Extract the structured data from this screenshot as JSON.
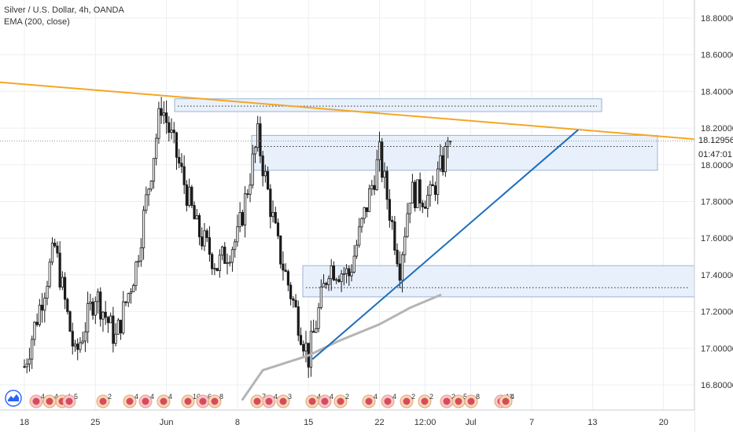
{
  "legend": {
    "title": "Silver / U.S. Dollar, 4h, OANDA",
    "indicator": "EMA (200, close)"
  },
  "current_price": "18.12956",
  "countdown": "01:47:01",
  "colors": {
    "up_candle": "#1a1a1a",
    "trendline_orange": "#f5a623",
    "trendline_blue": "#1e6fbf",
    "ema": "#b4b4b4",
    "zone_fill": "#e8f0fb",
    "zone_border": "#9db4d2",
    "grid": "#eceff2"
  },
  "chart_data": {
    "type": "candlestick",
    "ylabel": "",
    "ylim": [
      16.68,
      18.98
    ],
    "y_ticks": [
      "18.80000",
      "18.60000",
      "18.40000",
      "18.20000",
      "18.00000",
      "17.80000",
      "17.60000",
      "17.40000",
      "17.20000",
      "17.00000",
      "16.80000"
    ],
    "x_ticks": [
      "18",
      "25",
      "Jun",
      "8",
      "15",
      "22",
      "12:00",
      "Jul",
      "7",
      "13",
      "20"
    ],
    "price_key_points": [
      {
        "x": "18",
        "y": 16.9
      },
      {
        "x": "21",
        "y": 17.55
      },
      {
        "x": "23",
        "y": 16.95
      },
      {
        "x": "25",
        "y": 17.3
      },
      {
        "x": "27",
        "y": 17.05
      },
      {
        "x": "29",
        "y": 17.45
      },
      {
        "x": "Jun",
        "y": 18.33
      },
      {
        "x": "Jun 2",
        "y": 18.05
      },
      {
        "x": "Jun 4",
        "y": 17.65
      },
      {
        "x": "Jun 6",
        "y": 17.45
      },
      {
        "x": "Jun 8",
        "y": 17.6
      },
      {
        "x": "Jun 10",
        "y": 18.15
      },
      {
        "x": "Jun 12",
        "y": 17.55
      },
      {
        "x": "15",
        "y": 16.95
      },
      {
        "x": "Jun 17",
        "y": 17.45
      },
      {
        "x": "Jun 19",
        "y": 17.4
      },
      {
        "x": "22",
        "y": 18.05
      },
      {
        "x": "Jun 24",
        "y": 17.45
      },
      {
        "x": "Jun 25",
        "y": 17.85
      },
      {
        "x": "Jun 26",
        "y": 17.82
      },
      {
        "x": "Jun 29",
        "y": 18.13
      }
    ],
    "ema_200": [
      {
        "x": "Jun 9",
        "y": 16.72
      },
      {
        "x": "Jun 11",
        "y": 16.88
      },
      {
        "x": "15",
        "y": 16.96
      },
      {
        "x": "Jun 18",
        "y": 17.04
      },
      {
        "x": "22",
        "y": 17.13
      },
      {
        "x": "Jun 25",
        "y": 17.22
      },
      {
        "x": "Jun 28",
        "y": 17.29
      }
    ],
    "trendlines": [
      {
        "color": "orange",
        "from": {
          "x": "May 15",
          "y": 18.45
        },
        "to": {
          "x": "Jul 24",
          "y": 18.14
        }
      },
      {
        "color": "blue",
        "from": {
          "x": "15",
          "y": 16.94
        },
        "to": {
          "x": "Jul 14",
          "y": 18.19
        }
      }
    ],
    "zones": [
      {
        "y_top": 18.36,
        "y_bottom": 18.29,
        "dotted_level": 18.32
      },
      {
        "y_top": 18.16,
        "y_bottom": 17.97,
        "dotted_level": 18.1
      },
      {
        "y_top": 17.45,
        "y_bottom": 17.28,
        "dotted_level": 17.33
      }
    ],
    "event_labels": [
      "4",
      "4",
      "4",
      "5",
      "2",
      "4",
      "4",
      "4",
      "10",
      "6",
      "8",
      "7",
      "4",
      "3",
      "4",
      "4",
      "2",
      "4",
      "4",
      "2",
      "2",
      "2",
      "5",
      "8",
      "11",
      "4"
    ]
  }
}
